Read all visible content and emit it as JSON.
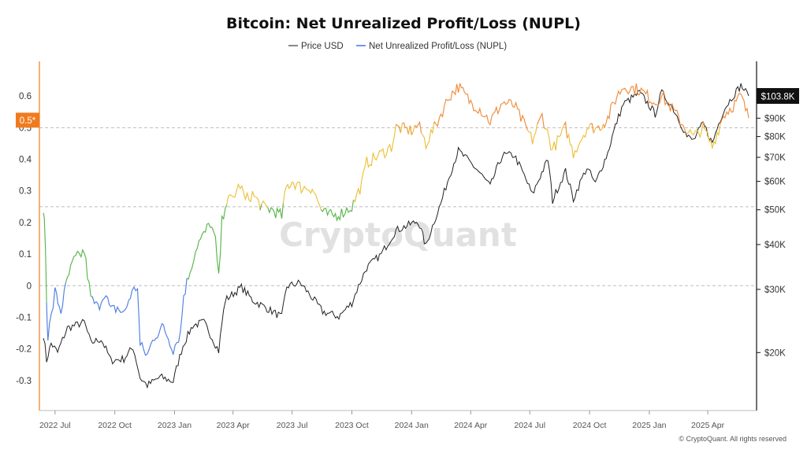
{
  "chart_data": {
    "type": "line",
    "title": "Bitcoin: Net Unrealized Profit/Loss (NUPL)",
    "legend": {
      "placement": "top-center",
      "items": [
        {
          "name": "Price USD",
          "color": "#555555"
        },
        {
          "name": "Net Unrealized Profit/Loss (NUPL)",
          "color": "#4f7fe0"
        }
      ]
    },
    "x_tick_labels": [
      "2022 Jul",
      "2022 Oct",
      "2023 Jan",
      "2023 Apr",
      "2023 Jul",
      "2023 Oct",
      "2024 Jan",
      "2024 Apr",
      "2024 Jul",
      "2024 Oct",
      "2025 Jan",
      "2025 Apr"
    ],
    "x_tick_dates": [
      "2022-07-01",
      "2022-10-01",
      "2023-01-01",
      "2023-04-01",
      "2023-07-01",
      "2023-10-01",
      "2024-01-01",
      "2024-04-01",
      "2024-07-01",
      "2024-10-01",
      "2025-01-01",
      "2025-04-01"
    ],
    "x_range": [
      "2022-06-13",
      "2025-06-03"
    ],
    "left_axis": {
      "label": "",
      "ticks": [
        "0.6",
        "0.5",
        "0.4",
        "0.3",
        "0.2",
        "0.1",
        "0",
        "-0.1",
        "-0.2",
        "-0.3"
      ],
      "tick_values": [
        0.6,
        0.5,
        0.4,
        0.3,
        0.2,
        0.1,
        0,
        -0.1,
        -0.2,
        -0.3
      ],
      "range": [
        -0.37,
        0.68
      ],
      "reference_badge": "0.5*",
      "reference_value": 0.5,
      "badge_color": "#f07b1e"
    },
    "right_axis": {
      "label": "",
      "scale": "log",
      "ticks": [
        "$90K",
        "$80K",
        "$70K",
        "$60K",
        "$50K",
        "$40K",
        "$30K",
        "$20K"
      ],
      "tick_values": [
        90000,
        80000,
        70000,
        60000,
        50000,
        40000,
        30000,
        20000
      ],
      "range": [
        14500,
        122000
      ],
      "current_value_label": "$103.8K",
      "current_value": 103800
    },
    "dashed_reference_lines": [
      {
        "axis": "left",
        "value": 0.5
      },
      {
        "axis": "left",
        "value": 0.25
      },
      {
        "axis": "left",
        "value": 0
      }
    ],
    "grid": false,
    "nupl_color_bands": [
      {
        "from": -1,
        "to": 0,
        "color": "#4f7fe0"
      },
      {
        "from": 0,
        "to": 0.25,
        "color": "#5ab54b"
      },
      {
        "from": 0.25,
        "to": 0.5,
        "color": "#ecc13a"
      },
      {
        "from": 0.5,
        "to": 0.75,
        "color": "#f08c3c"
      }
    ],
    "series": [
      {
        "name": "Net Unrealized Profit/Loss (NUPL)",
        "axis": "left",
        "points": [
          [
            "2022-06-13",
            0.25
          ],
          [
            "2022-06-16",
            0.14
          ],
          [
            "2022-06-18",
            -0.05
          ],
          [
            "2022-06-20",
            -0.16
          ],
          [
            "2022-06-25",
            -0.1
          ],
          [
            "2022-07-01",
            -0.02
          ],
          [
            "2022-07-10",
            -0.08
          ],
          [
            "2022-07-20",
            0.02
          ],
          [
            "2022-07-30",
            0.08
          ],
          [
            "2022-08-10",
            0.1
          ],
          [
            "2022-08-15",
            0.11
          ],
          [
            "2022-08-25",
            -0.04
          ],
          [
            "2022-09-05",
            -0.07
          ],
          [
            "2022-09-15",
            -0.02
          ],
          [
            "2022-09-25",
            -0.08
          ],
          [
            "2022-10-05",
            -0.07
          ],
          [
            "2022-10-15",
            -0.09
          ],
          [
            "2022-10-25",
            -0.03
          ],
          [
            "2022-11-05",
            0.0
          ],
          [
            "2022-11-09",
            -0.19
          ],
          [
            "2022-11-20",
            -0.22
          ],
          [
            "2022-12-01",
            -0.16
          ],
          [
            "2022-12-15",
            -0.13
          ],
          [
            "2022-12-30",
            -0.2
          ],
          [
            "2023-01-10",
            -0.15
          ],
          [
            "2023-01-15",
            -0.03
          ],
          [
            "2023-01-25",
            0.05
          ],
          [
            "2023-02-05",
            0.13
          ],
          [
            "2023-02-15",
            0.16
          ],
          [
            "2023-02-25",
            0.2
          ],
          [
            "2023-03-05",
            0.14
          ],
          [
            "2023-03-10",
            0.02
          ],
          [
            "2023-03-15",
            0.2
          ],
          [
            "2023-03-20",
            0.26
          ],
          [
            "2023-04-01",
            0.28
          ],
          [
            "2023-04-12",
            0.32
          ],
          [
            "2023-04-20",
            0.27
          ],
          [
            "2023-05-01",
            0.29
          ],
          [
            "2023-05-15",
            0.25
          ],
          [
            "2023-06-01",
            0.24
          ],
          [
            "2023-06-15",
            0.22
          ],
          [
            "2023-06-22",
            0.31
          ],
          [
            "2023-07-01",
            0.33
          ],
          [
            "2023-07-15",
            0.31
          ],
          [
            "2023-08-01",
            0.31
          ],
          [
            "2023-08-17",
            0.23
          ],
          [
            "2023-09-01",
            0.22
          ],
          [
            "2023-09-15",
            0.23
          ],
          [
            "2023-10-01",
            0.25
          ],
          [
            "2023-10-16",
            0.32
          ],
          [
            "2023-10-24",
            0.39
          ],
          [
            "2023-11-10",
            0.41
          ],
          [
            "2023-12-01",
            0.44
          ],
          [
            "2023-12-08",
            0.5
          ],
          [
            "2024-01-01",
            0.49
          ],
          [
            "2024-01-11",
            0.51
          ],
          [
            "2024-01-23",
            0.45
          ],
          [
            "2024-02-10",
            0.52
          ],
          [
            "2024-02-28",
            0.6
          ],
          [
            "2024-03-13",
            0.63
          ],
          [
            "2024-04-01",
            0.58
          ],
          [
            "2024-04-15",
            0.56
          ],
          [
            "2024-05-01",
            0.52
          ],
          [
            "2024-05-20",
            0.58
          ],
          [
            "2024-06-07",
            0.57
          ],
          [
            "2024-07-05",
            0.46
          ],
          [
            "2024-07-20",
            0.54
          ],
          [
            "2024-08-05",
            0.43
          ],
          [
            "2024-08-25",
            0.5
          ],
          [
            "2024-09-06",
            0.42
          ],
          [
            "2024-09-27",
            0.5
          ],
          [
            "2024-10-15",
            0.5
          ],
          [
            "2024-10-29",
            0.53
          ],
          [
            "2024-11-12",
            0.6
          ],
          [
            "2024-11-22",
            0.63
          ],
          [
            "2024-12-17",
            0.62
          ],
          [
            "2025-01-10",
            0.58
          ],
          [
            "2025-01-20",
            0.6
          ],
          [
            "2025-02-05",
            0.56
          ],
          [
            "2025-02-25",
            0.5
          ],
          [
            "2025-03-10",
            0.47
          ],
          [
            "2025-03-25",
            0.5
          ],
          [
            "2025-04-08",
            0.44
          ],
          [
            "2025-04-25",
            0.54
          ],
          [
            "2025-05-10",
            0.57
          ],
          [
            "2025-05-22",
            0.6
          ],
          [
            "2025-06-03",
            0.53
          ]
        ]
      },
      {
        "name": "Price USD",
        "axis": "right",
        "color": "#222222",
        "points": [
          [
            "2022-06-13",
            22500
          ],
          [
            "2022-06-18",
            19000
          ],
          [
            "2022-06-25",
            21200
          ],
          [
            "2022-07-05",
            20000
          ],
          [
            "2022-07-20",
            23400
          ],
          [
            "2022-08-15",
            24300
          ],
          [
            "2022-08-25",
            21300
          ],
          [
            "2022-09-10",
            21800
          ],
          [
            "2022-09-25",
            19000
          ],
          [
            "2022-10-15",
            19200
          ],
          [
            "2022-10-29",
            20700
          ],
          [
            "2022-11-09",
            17000
          ],
          [
            "2022-11-20",
            16200
          ],
          [
            "2022-12-10",
            17100
          ],
          [
            "2022-12-30",
            16600
          ],
          [
            "2023-01-14",
            20900
          ],
          [
            "2023-01-29",
            23800
          ],
          [
            "2023-02-15",
            24300
          ],
          [
            "2023-03-10",
            20200
          ],
          [
            "2023-03-20",
            28000
          ],
          [
            "2023-04-14",
            30400
          ],
          [
            "2023-05-01",
            28000
          ],
          [
            "2023-06-15",
            25100
          ],
          [
            "2023-06-23",
            30600
          ],
          [
            "2023-07-13",
            31300
          ],
          [
            "2023-08-17",
            26000
          ],
          [
            "2023-09-11",
            25200
          ],
          [
            "2023-10-01",
            27500
          ],
          [
            "2023-10-24",
            34500
          ],
          [
            "2023-11-15",
            37500
          ],
          [
            "2023-12-08",
            43800
          ],
          [
            "2024-01-11",
            46500
          ],
          [
            "2024-01-23",
            39500
          ],
          [
            "2024-02-15",
            52000
          ],
          [
            "2024-02-28",
            62000
          ],
          [
            "2024-03-13",
            73000
          ],
          [
            "2024-04-13",
            64000
          ],
          [
            "2024-05-01",
            58000
          ],
          [
            "2024-05-20",
            71000
          ],
          [
            "2024-06-07",
            71000
          ],
          [
            "2024-07-05",
            55000
          ],
          [
            "2024-07-29",
            69000
          ],
          [
            "2024-08-05",
            53000
          ],
          [
            "2024-08-25",
            64000
          ],
          [
            "2024-09-06",
            53500
          ],
          [
            "2024-09-27",
            65500
          ],
          [
            "2024-10-10",
            59000
          ],
          [
            "2024-10-29",
            72000
          ],
          [
            "2024-11-12",
            88000
          ],
          [
            "2024-11-22",
            98500
          ],
          [
            "2024-12-17",
            106000
          ],
          [
            "2025-01-10",
            92500
          ],
          [
            "2025-01-20",
            106000
          ],
          [
            "2025-02-05",
            97000
          ],
          [
            "2025-02-28",
            80000
          ],
          [
            "2025-03-10",
            78000
          ],
          [
            "2025-03-25",
            87000
          ],
          [
            "2025-04-08",
            76500
          ],
          [
            "2025-04-25",
            94500
          ],
          [
            "2025-05-10",
            104000
          ],
          [
            "2025-05-22",
            111000
          ],
          [
            "2025-06-03",
            103800
          ]
        ]
      }
    ],
    "watermark": "CryptoQuant",
    "copyright": "© CryptoQuant. All rights reserved"
  }
}
